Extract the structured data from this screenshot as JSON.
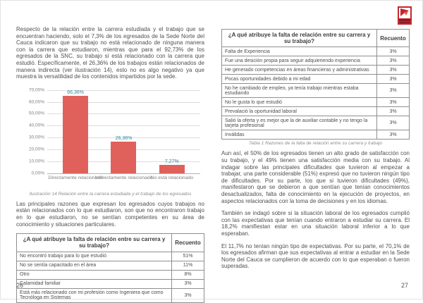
{
  "logo": {
    "name": "university-shield-logo",
    "red": "#c3272e",
    "dark_red": "#8e1b20"
  },
  "page_left": {
    "page_number": "26",
    "intro_paragraph": "Respecto de la relación entre la carrera estudiada y el trabajo que se encuentran haciendo, solo el 7,3% de los egresados de la Sede Norte del Cauca indicaron que su trabajo no está relacionado de ninguna manera con la carrera que estudiaron, mientras que para el 92,73% de los egresados de la SNC, su trabajo sí está relacionado con la carrera que estudió. Específicamente, el 26,36% de los trabajos están relacionados de manera indirecta (ver ilustración 14), esto no es algo negativo ya que muestra la versatilidad de los contenidos impartidos por la sede.",
    "chart_caption": "Ilustración 14 Relación entre la carrera estudiada y el trabajo de los egresados",
    "paragraph_2": "Las principales razones que expresan los egresados cuyos trabajos no están relacionados con lo que estudiaron, son que no encontraron trabajo en lo que estudiaron, no se sentían competentes en su área de conocimiento y situaciones particulares.",
    "table": {
      "header": [
        "¿A qué atribuye la falta de relación entre\nsu carrera y su trabajo?",
        "Recuento"
      ],
      "rows": [
        [
          "No encontró trabajo para lo que estudió",
          "51%"
        ],
        [
          "No se sentía capacitado en el área",
          "11%"
        ],
        [
          "Otro",
          "8%"
        ],
        [
          "Calamidad familiar",
          "3%"
        ],
        [
          "Está más relacionado con mi profesión como Ingeniera que como Tecnóloga en Sistemas",
          "3%"
        ]
      ]
    }
  },
  "page_right": {
    "page_number": "27",
    "table": {
      "header": [
        "¿A qué atribuye la falta de relación entre\nsu carrera y su trabajo?",
        "Recuento"
      ],
      "rows": [
        [
          "Falta de Experiencia",
          "3%"
        ],
        [
          "Fue una desición propia para seguir adquieriendo experiencia",
          "3%"
        ],
        [
          "He generado competencias en áreas financieras y administrativas",
          "3%"
        ],
        [
          "Pocas oportunidades debido a mi edad",
          "3%"
        ],
        [
          "No he cambiado de empleo, ya tenía trabajo mientras estaba estudiando",
          "3%"
        ],
        [
          "No le gusta lo que estudió",
          "3%"
        ],
        [
          "Prevalació la oportunidad laboral",
          "3%"
        ],
        [
          "Salió la oferta y es mejor que la de auxiliar contable y no tengo la tarjeta profesional",
          "3%"
        ],
        [
          "Inválidas",
          "3%"
        ]
      ]
    },
    "table_caption": "Tabla 1 Razones de la falta de relación entre su carrera y trabajo",
    "paragraphs": [
      "Aun así, el 50% de los egresados tienen un alto grado de satisfacción con su trabajo, y el 49% tienen una satisfacción media con su trabajo. Al indagar sobre las principales dificultades que tuvieron al empezar a trabajar, una parte considerable (51%) expresó que no tuvieron ningún tipo de dificultades. Por su parte, los que si tuvieron dificultades (49%), manifestaron que se debieron a que sentían que tenían conocimientos desactualizados, falta de conocimiento en la ejecución de proyectos, en aspectos relacionados con la toma de decisiones y en los idiomas.",
      "También se indagó sobre si la situación laboral de los egresados cumplió con las expectativas que tenían cuando entraron a estudiar su carrera. El 18,2% manifiestan estar en una situación laboral inferior a lo que esperaban.",
      "El 11,7% no tenían ningún tipo de expectativas. Por su parte, el 70,1% de los egresados afirman que sus expectativas al entrar a estudiar en la Sede Norte del Cauca se cumplieron de acuerdo con lo que esperaban o fueron superadas."
    ]
  },
  "chart_data": {
    "type": "bar",
    "categories": [
      "Directamente relacionado",
      "Indirectamente relacionado",
      "No está relacionado"
    ],
    "values": [
      66.36,
      26.36,
      7.27
    ],
    "value_labels": [
      "66,36%",
      "26,36%",
      "7,27%"
    ],
    "y_ticks": [
      "70,00%",
      "60,00%",
      "50,00%",
      "40,00%",
      "30,00%",
      "20,00%",
      "10,00%",
      "0,00%"
    ],
    "ylim": [
      0,
      70
    ],
    "title": "",
    "xlabel": "",
    "ylabel": "",
    "grid": true,
    "legend": false,
    "bar_color": "#e0615b",
    "label_color": "#31859c"
  }
}
